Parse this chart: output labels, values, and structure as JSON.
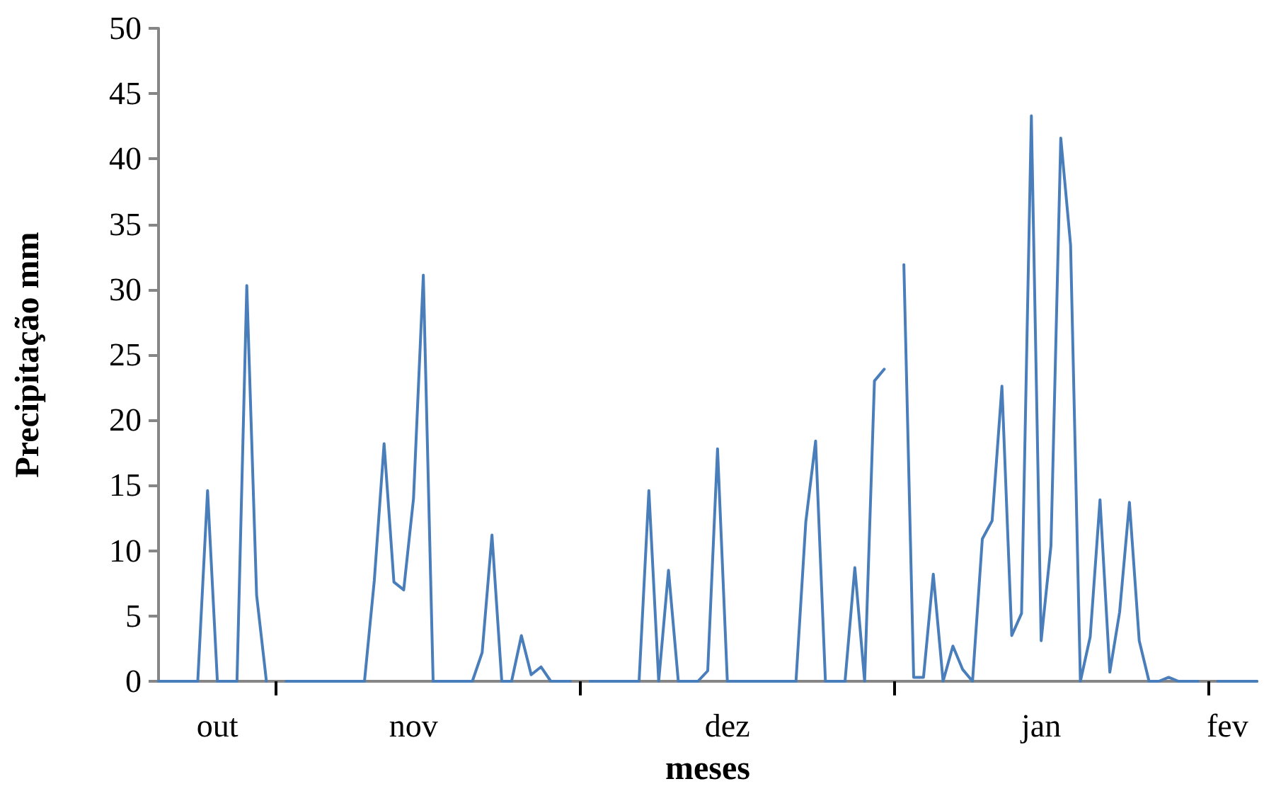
{
  "chart_data": {
    "type": "line",
    "xlabel": "meses",
    "ylabel": "Precipitação mm",
    "categories": [
      null,
      null,
      null,
      null,
      null,
      null,
      "out",
      null,
      null,
      null,
      null,
      null,
      null,
      null,
      null,
      null,
      null,
      null,
      null,
      null,
      null,
      null,
      null,
      null,
      null,
      null,
      "nov",
      null,
      null,
      null,
      null,
      null,
      null,
      null,
      null,
      null,
      null,
      null,
      null,
      null,
      null,
      null,
      null,
      null,
      null,
      null,
      null,
      null,
      null,
      null,
      null,
      null,
      null,
      null,
      null,
      null,
      null,
      null,
      "dez",
      null,
      null,
      null,
      null,
      null,
      null,
      null,
      null,
      null,
      null,
      null,
      null,
      null,
      null,
      null,
      null,
      null,
      null,
      null,
      null,
      null,
      null,
      null,
      null,
      null,
      null,
      null,
      null,
      null,
      null,
      null,
      "jan",
      null,
      null,
      null,
      null,
      null,
      null,
      null,
      null,
      null,
      null,
      null,
      null,
      null,
      null,
      null,
      null,
      null,
      null,
      "fev",
      null,
      null,
      null
    ],
    "series": [
      {
        "color": "#4a7ebb",
        "values": [
          0,
          0,
          0,
          0,
          0,
          14.6,
          0,
          0,
          0,
          30.3,
          6.6,
          0,
          null,
          0,
          0,
          0,
          0,
          0,
          0,
          0,
          0,
          0,
          7.7,
          18.2,
          7.6,
          7.0,
          14.0,
          31.1,
          0,
          0,
          0,
          0,
          0,
          2.2,
          11.2,
          0,
          0,
          3.5,
          0.5,
          1.1,
          0,
          0,
          0,
          null,
          0,
          0,
          0,
          0,
          0,
          0,
          14.6,
          0,
          8.5,
          0,
          0,
          0,
          0.8,
          17.8,
          0,
          0,
          0,
          0,
          0,
          0,
          0,
          0,
          12.2,
          18.4,
          0,
          0,
          0,
          8.7,
          0,
          23.0,
          23.9,
          null,
          31.9,
          0.3,
          0.3,
          8.2,
          0,
          2.7,
          0.9,
          0,
          10.9,
          12.3,
          22.6,
          3.5,
          5.2,
          43.3,
          3.1,
          10.4,
          41.6,
          33.4,
          0,
          3.4,
          13.9,
          0.7,
          5.3,
          13.7,
          3.1,
          0,
          0,
          0.3,
          0,
          0,
          0,
          null,
          0,
          0,
          0,
          0,
          0
        ]
      }
    ],
    "ylim": [
      0,
      50
    ],
    "yticks": [
      0,
      5,
      10,
      15,
      20,
      25,
      30,
      35,
      40,
      45,
      50
    ],
    "grid": false,
    "marker": "none",
    "line_style": "solid"
  }
}
